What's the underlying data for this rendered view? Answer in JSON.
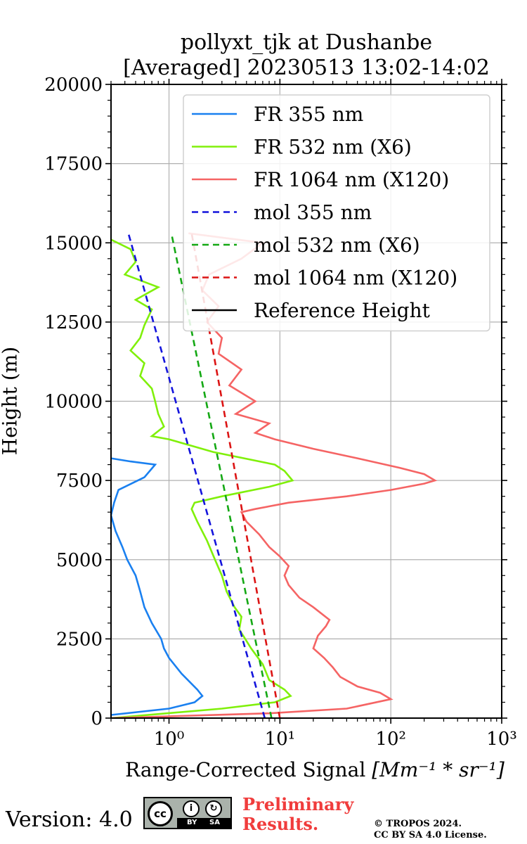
{
  "chart_data": {
    "type": "line",
    "title": "pollyxt_tjk at Dushanbe",
    "subtitle": "[Averaged] 20230513 13:02-14:02",
    "xlabel": "Range-Corrected Signal",
    "xlabel_unit": "[Mm⁻¹ * sr⁻¹]",
    "ylabel": "Height (m)",
    "xscale": "log",
    "xlim": [
      0.3,
      1000
    ],
    "ylim": [
      0,
      20000
    ],
    "xticks": [
      1,
      10,
      100,
      1000
    ],
    "xtick_labels": [
      "10⁰",
      "10¹",
      "10²",
      "10³"
    ],
    "yticks": [
      0,
      2500,
      5000,
      7500,
      10000,
      12500,
      15000,
      17500,
      20000
    ],
    "ytick_labels": [
      "0",
      "2500",
      "5000",
      "7500",
      "10000",
      "12500",
      "15000",
      "17500",
      "20000"
    ],
    "grid": true,
    "legend_position": "top-right",
    "series": [
      {
        "name": "FR 355 nm",
        "color": "#1a80f0",
        "style": "solid",
        "points": [
          [
            0.3,
            100
          ],
          [
            1.0,
            300
          ],
          [
            1.7,
            500
          ],
          [
            2.0,
            700
          ],
          [
            1.8,
            900
          ],
          [
            1.3,
            1400
          ],
          [
            1.0,
            1900
          ],
          [
            0.9,
            2200
          ],
          [
            0.85,
            2500
          ],
          [
            0.7,
            3000
          ],
          [
            0.6,
            3500
          ],
          [
            0.55,
            4000
          ],
          [
            0.5,
            4500
          ],
          [
            0.42,
            5000
          ],
          [
            0.38,
            5400
          ],
          [
            0.33,
            5900
          ],
          [
            0.3,
            6400
          ],
          [
            0.32,
            6800
          ],
          [
            0.35,
            7200
          ],
          [
            0.6,
            7600
          ],
          [
            0.75,
            8000
          ],
          [
            0.45,
            8100
          ],
          [
            0.3,
            8200
          ]
        ]
      },
      {
        "name": "FR 532 nm (X6)",
        "color": "#80f00a",
        "style": "solid",
        "points": [
          [
            0.3,
            0
          ],
          [
            3.0,
            300
          ],
          [
            9.0,
            500
          ],
          [
            12.5,
            700
          ],
          [
            11.0,
            900
          ],
          [
            8.0,
            1200
          ],
          [
            7.0,
            1700
          ],
          [
            5.5,
            2200
          ],
          [
            4.3,
            2800
          ],
          [
            4.5,
            3200
          ],
          [
            3.9,
            3500
          ],
          [
            3.3,
            4000
          ],
          [
            3.0,
            4500
          ],
          [
            2.6,
            5000
          ],
          [
            2.2,
            5600
          ],
          [
            1.8,
            6200
          ],
          [
            1.6,
            6600
          ],
          [
            1.7,
            6800
          ],
          [
            3.0,
            7000
          ],
          [
            8.0,
            7300
          ],
          [
            13.0,
            7500
          ],
          [
            11.0,
            7800
          ],
          [
            9.0,
            8000
          ],
          [
            2.5,
            8400
          ],
          [
            1.0,
            8800
          ],
          [
            0.7,
            8900
          ],
          [
            0.9,
            9200
          ],
          [
            0.8,
            9600
          ],
          [
            0.75,
            10000
          ],
          [
            0.7,
            10400
          ],
          [
            0.55,
            10800
          ],
          [
            0.6,
            11200
          ],
          [
            0.45,
            11600
          ],
          [
            0.55,
            12000
          ],
          [
            0.6,
            12400
          ],
          [
            0.7,
            12900
          ],
          [
            0.5,
            13200
          ],
          [
            0.8,
            13600
          ],
          [
            0.4,
            14000
          ],
          [
            0.5,
            14400
          ],
          [
            0.45,
            14800
          ],
          [
            0.3,
            15100
          ]
        ]
      },
      {
        "name": "FR 1064 nm (X120)",
        "color": "#f56464",
        "style": "solid",
        "points": [
          [
            0.3,
            0
          ],
          [
            8.0,
            150
          ],
          [
            40.0,
            300
          ],
          [
            100.0,
            600
          ],
          [
            80.0,
            800
          ],
          [
            50.0,
            1000
          ],
          [
            35.0,
            1300
          ],
          [
            30.0,
            1600
          ],
          [
            25.0,
            1900
          ],
          [
            20.0,
            2200
          ],
          [
            22.0,
            2600
          ],
          [
            26.0,
            2900
          ],
          [
            28.0,
            3100
          ],
          [
            20.0,
            3500
          ],
          [
            15.0,
            3800
          ],
          [
            12.0,
            4200
          ],
          [
            11.0,
            4500
          ],
          [
            12.0,
            4800
          ],
          [
            10.0,
            5100
          ],
          [
            8.0,
            5400
          ],
          [
            6.5,
            5800
          ],
          [
            5.0,
            6200
          ],
          [
            4.5,
            6500
          ],
          [
            6.0,
            6600
          ],
          [
            12.0,
            6800
          ],
          [
            40.0,
            7000
          ],
          [
            100.0,
            7200
          ],
          [
            200.0,
            7400
          ],
          [
            250.0,
            7500
          ],
          [
            200.0,
            7700
          ],
          [
            120.0,
            7900
          ],
          [
            50.0,
            8200
          ],
          [
            20.0,
            8500
          ],
          [
            9.0,
            8800
          ],
          [
            6.0,
            9000
          ],
          [
            8.0,
            9300
          ],
          [
            4.0,
            9600
          ],
          [
            6.0,
            10000
          ],
          [
            3.5,
            10500
          ],
          [
            4.5,
            11000
          ],
          [
            2.8,
            11500
          ],
          [
            3.0,
            12000
          ],
          [
            2.2,
            12500
          ],
          [
            2.8,
            13000
          ],
          [
            2.0,
            13500
          ],
          [
            2.3,
            14000
          ],
          [
            4.5,
            14500
          ],
          [
            7.0,
            15000
          ],
          [
            1.5,
            15300
          ]
        ]
      },
      {
        "name": "mol 355 nm",
        "color": "#1414dc",
        "style": "dashed",
        "points": [
          [
            7.3,
            0
          ],
          [
            0.43,
            15300
          ]
        ]
      },
      {
        "name": "mol 532 nm (X6)",
        "color": "#14a814",
        "style": "dashed",
        "points": [
          [
            8.4,
            0
          ],
          [
            1.05,
            15300
          ]
        ]
      },
      {
        "name": "mol 1064 nm (X120)",
        "color": "#dc1414",
        "style": "dashed",
        "points": [
          [
            10.0,
            0
          ],
          [
            1.6,
            15300
          ]
        ]
      },
      {
        "name": "Reference Height",
        "color": "#000000",
        "style": "solid",
        "points": []
      }
    ]
  },
  "footer": {
    "version": "Version: 4.0",
    "cc_label": "cc",
    "cc_by": "BY",
    "cc_sa": "SA",
    "preliminary_line1": "Preliminary",
    "preliminary_line2": "Results.",
    "copyright_line1": "© TROPOS 2024.",
    "copyright_line2": "CC BY SA 4.0 License."
  }
}
